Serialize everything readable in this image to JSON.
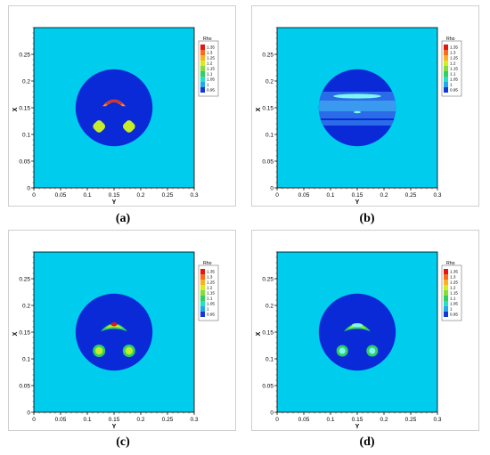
{
  "figure": {
    "colors": {
      "background": "#00ccee",
      "blob_blue": "#0a2ad8",
      "mid_blue": "#2a6ce8",
      "light_blue": "#3a9af0",
      "pale_cyan": "#7ff6f0",
      "yellow_green": "#c6ec2a",
      "green": "#30d060",
      "orange": "#ff8a14",
      "red": "#e61515"
    },
    "axes": {
      "x_label": "Y",
      "y_label": "X",
      "x_ticks": [
        "0",
        "0.05",
        "0.1",
        "0.15",
        "0.2",
        "0.25",
        "0.3"
      ],
      "y_ticks": [
        "0",
        "0.05",
        "0.1",
        "0.15",
        "0.2",
        "0.25"
      ]
    },
    "legend": {
      "title": "Rho",
      "levels": [
        "1.35",
        "1.3",
        "1.25",
        "1.2",
        "1.15",
        "1.1",
        "1.05",
        "1",
        "0.95"
      ],
      "colors": [
        "#e61515",
        "#ff6a14",
        "#ffb020",
        "#d6ec20",
        "#7ee03a",
        "#30d060",
        "#24e0c8",
        "#22a8f0",
        "#1438d8"
      ]
    },
    "panels": [
      {
        "caption": "(a)"
      },
      {
        "caption": "(b)"
      },
      {
        "caption": "(c)"
      },
      {
        "caption": "(d)"
      }
    ]
  }
}
